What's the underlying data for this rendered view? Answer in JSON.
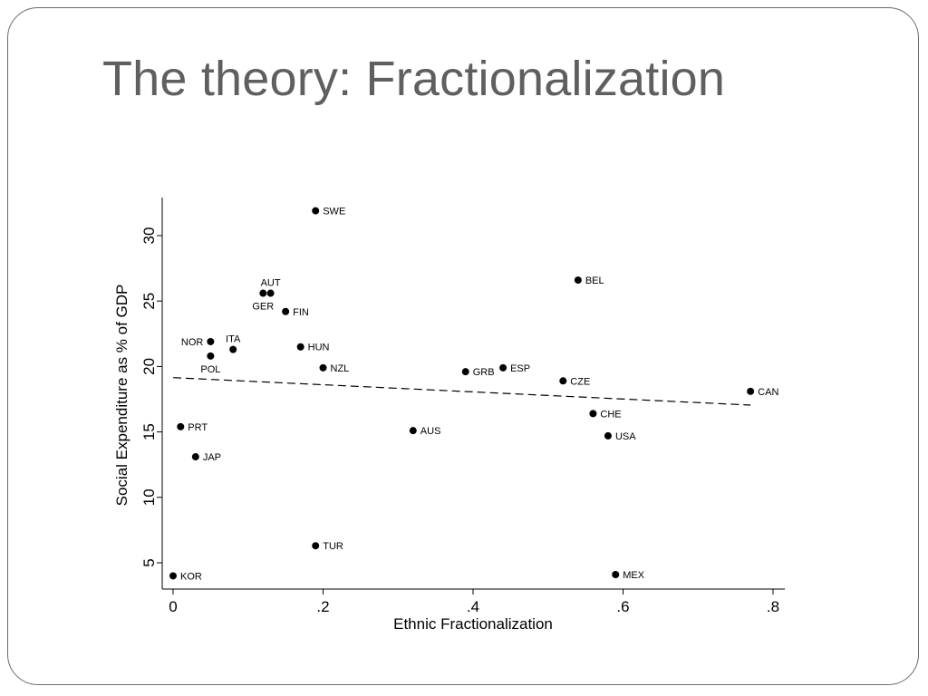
{
  "slide": {
    "title": "The theory: Fractionalization"
  },
  "chart_data": {
    "type": "scatter",
    "xlabel": "Ethnic Fractionalization",
    "ylabel": "Social Expenditure as % of GDP",
    "xlim": [
      0,
      0.8
    ],
    "ylim": [
      4,
      32.5
    ],
    "xticks": [
      {
        "value": 0,
        "label": "0"
      },
      {
        "value": 0.2,
        "label": ".2"
      },
      {
        "value": 0.4,
        "label": ".4"
      },
      {
        "value": 0.6,
        "label": ".6"
      },
      {
        "value": 0.8,
        "label": ".8"
      }
    ],
    "yticks": [
      {
        "value": 5,
        "label": "5"
      },
      {
        "value": 10,
        "label": "10"
      },
      {
        "value": 15,
        "label": "15"
      },
      {
        "value": 20,
        "label": "20"
      },
      {
        "value": 25,
        "label": "25"
      },
      {
        "value": 30,
        "label": "30"
      }
    ],
    "grid": false,
    "legend": "none",
    "points": [
      {
        "label": "SWE",
        "x": 0.19,
        "y": 31.9,
        "pos": "right"
      },
      {
        "label": "AUT",
        "x": 0.13,
        "y": 25.6,
        "pos": "above"
      },
      {
        "label": "GER",
        "x": 0.12,
        "y": 25.6,
        "pos": "below"
      },
      {
        "label": "FIN",
        "x": 0.15,
        "y": 24.2,
        "pos": "right"
      },
      {
        "label": "BEL",
        "x": 0.54,
        "y": 26.6,
        "pos": "right"
      },
      {
        "label": "NOR",
        "x": 0.05,
        "y": 21.9,
        "pos": "left"
      },
      {
        "label": "POL",
        "x": 0.05,
        "y": 20.8,
        "pos": "below"
      },
      {
        "label": "ITA",
        "x": 0.08,
        "y": 21.3,
        "pos": "above"
      },
      {
        "label": "HUN",
        "x": 0.17,
        "y": 21.5,
        "pos": "right"
      },
      {
        "label": "NZL",
        "x": 0.2,
        "y": 19.9,
        "pos": "right"
      },
      {
        "label": "GRB",
        "x": 0.39,
        "y": 19.6,
        "pos": "right"
      },
      {
        "label": "ESP",
        "x": 0.44,
        "y": 19.9,
        "pos": "right"
      },
      {
        "label": "CZE",
        "x": 0.52,
        "y": 18.9,
        "pos": "right"
      },
      {
        "label": "CAN",
        "x": 0.77,
        "y": 18.1,
        "pos": "right"
      },
      {
        "label": "CHE",
        "x": 0.56,
        "y": 16.4,
        "pos": "right"
      },
      {
        "label": "USA",
        "x": 0.58,
        "y": 14.7,
        "pos": "right"
      },
      {
        "label": "PRT",
        "x": 0.01,
        "y": 15.4,
        "pos": "right"
      },
      {
        "label": "AUS",
        "x": 0.32,
        "y": 15.1,
        "pos": "right"
      },
      {
        "label": "JAP",
        "x": 0.03,
        "y": 13.1,
        "pos": "right"
      },
      {
        "label": "TUR",
        "x": 0.19,
        "y": 6.3,
        "pos": "right"
      },
      {
        "label": "KOR",
        "x": 0.0,
        "y": 4.0,
        "pos": "right"
      },
      {
        "label": "MEX",
        "x": 0.59,
        "y": 4.1,
        "pos": "right"
      }
    ],
    "fit_line": {
      "style": "dashed",
      "x": [
        0,
        0.77
      ],
      "y": [
        19.15,
        17.05
      ]
    }
  }
}
